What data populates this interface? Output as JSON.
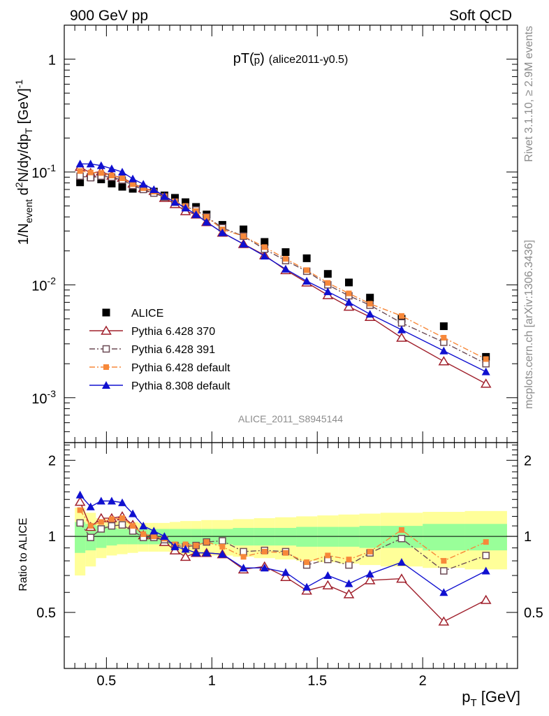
{
  "header": {
    "left": "900 GeV pp",
    "right": "Soft QCD"
  },
  "side": {
    "rivet": "Rivet 3.1.10, ≥ 2.9M events",
    "mcplots": "mcplots.cern.ch [arXiv:1306.3436]"
  },
  "analysis_id": "ALICE_2011_S8945144",
  "colors": {
    "alice": "#000000",
    "p370": "#a0202c",
    "p391": "#6b4a55",
    "pdef": "#f7883a",
    "p8": "#1010d0",
    "band_inner": "#99ff99",
    "band_outer": "#ffff99"
  },
  "chart_data": [
    {
      "type": "scatter",
      "title_main": "pT(",
      "title_pbar": "p",
      "title_close": ")",
      "title_tag": "(alice2011-y0.5)",
      "ylabel": {
        "a": "1/N",
        "a_sub": "event",
        "b": " d",
        "b_sup": "2",
        "c": "N/dy/dp",
        "c_sub": "T",
        "d": " [GeV]",
        "d_sup": "-1"
      },
      "yscale": "log",
      "xlim": [
        0.3,
        2.45
      ],
      "ylim": [
        0.0004,
        2.0
      ],
      "yticks": [
        {
          "value": 1,
          "base": "1",
          "exp": ""
        },
        {
          "value": 0.1,
          "base": "10",
          "exp": "-1"
        },
        {
          "value": 0.01,
          "base": "10",
          "exp": "-2"
        },
        {
          "value": 0.001,
          "base": "10",
          "exp": "-3"
        }
      ],
      "x": [
        0.375,
        0.425,
        0.475,
        0.525,
        0.575,
        0.625,
        0.675,
        0.725,
        0.775,
        0.825,
        0.875,
        0.925,
        0.975,
        1.05,
        1.15,
        1.25,
        1.35,
        1.45,
        1.55,
        1.65,
        1.75,
        1.9,
        2.1,
        2.3
      ],
      "legend_position": "bottom-left",
      "series": [
        {
          "name": "ALICE",
          "marker": "filled-square",
          "color_key": "alice",
          "values": [
            0.081,
            0.09,
            0.086,
            0.079,
            0.074,
            0.071,
            0.071,
            0.067,
            0.062,
            0.059,
            0.054,
            0.049,
            0.042,
            0.034,
            0.031,
            0.024,
            0.0195,
            0.0172,
            0.0125,
            0.0105,
            0.0077,
            0.005,
            0.0043,
            0.0023
          ]
        },
        {
          "name": "Pythia 6.428 370",
          "marker": "open-triangle",
          "color_key": "p370",
          "line": "solid",
          "values": [
            0.111,
            0.098,
            0.101,
            0.093,
            0.089,
            0.079,
            0.072,
            0.068,
            0.059,
            0.052,
            0.045,
            0.042,
            0.036,
            0.029,
            0.023,
            0.0183,
            0.0135,
            0.0105,
            0.0081,
            0.0064,
            0.0052,
            0.0034,
            0.0021,
            0.00133
          ]
        },
        {
          "name": "Pythia 6.428 391",
          "marker": "open-square",
          "color_key": "p391",
          "line": "dashdot",
          "values": [
            0.092,
            0.089,
            0.092,
            0.09,
            0.085,
            0.076,
            0.07,
            0.065,
            0.06,
            0.054,
            0.049,
            0.046,
            0.04,
            0.032,
            0.027,
            0.0207,
            0.0164,
            0.0132,
            0.01,
            0.008,
            0.0066,
            0.0046,
            0.0031,
            0.002
          ]
        },
        {
          "name": "Pythia 6.428 default",
          "marker": "filled-small-square",
          "color_key": "pdef",
          "line": "dashdot",
          "values": [
            0.102,
            0.099,
            0.098,
            0.093,
            0.088,
            0.078,
            0.072,
            0.067,
            0.061,
            0.055,
            0.05,
            0.045,
            0.04,
            0.031,
            0.027,
            0.0216,
            0.017,
            0.0135,
            0.0104,
            0.0084,
            0.0068,
            0.0053,
            0.0034,
            0.0022
          ]
        },
        {
          "name": "Pythia 8.308 default",
          "marker": "filled-triangle",
          "color_key": "p8",
          "line": "solid",
          "values": [
            0.118,
            0.118,
            0.114,
            0.107,
            0.1,
            0.087,
            0.078,
            0.07,
            0.061,
            0.054,
            0.048,
            0.042,
            0.036,
            0.029,
            0.023,
            0.018,
            0.0138,
            0.0108,
            0.0087,
            0.007,
            0.0055,
            0.004,
            0.0026,
            0.0017
          ]
        }
      ]
    },
    {
      "type": "scatter",
      "ylabel": "Ratio to ALICE",
      "xlabel": {
        "a": "p",
        "sub": "T",
        "b": " [GeV]"
      },
      "xlim": [
        0.3,
        2.45
      ],
      "ylim": [
        0.3,
        2.35
      ],
      "yticks": [
        0.5,
        1,
        2
      ],
      "xticks": [
        0.5,
        1,
        1.5,
        2
      ],
      "reference_line": 1,
      "x": [
        0.375,
        0.425,
        0.475,
        0.525,
        0.575,
        0.625,
        0.675,
        0.725,
        0.775,
        0.825,
        0.875,
        0.925,
        0.975,
        1.05,
        1.15,
        1.25,
        1.35,
        1.45,
        1.55,
        1.65,
        1.75,
        1.9,
        2.1,
        2.3
      ],
      "bins": [
        [
          0.35,
          0.4
        ],
        [
          0.4,
          0.45
        ],
        [
          0.45,
          0.5
        ],
        [
          0.5,
          0.55
        ],
        [
          0.55,
          0.6
        ],
        [
          0.6,
          0.65
        ],
        [
          0.65,
          0.7
        ],
        [
          0.7,
          0.75
        ],
        [
          0.75,
          0.8
        ],
        [
          0.8,
          0.85
        ],
        [
          0.85,
          0.9
        ],
        [
          0.9,
          0.95
        ],
        [
          0.95,
          1.0
        ],
        [
          1.0,
          1.1
        ],
        [
          1.1,
          1.2
        ],
        [
          1.2,
          1.3
        ],
        [
          1.3,
          1.4
        ],
        [
          1.4,
          1.5
        ],
        [
          1.5,
          1.6
        ],
        [
          1.6,
          1.7
        ],
        [
          1.7,
          1.8
        ],
        [
          1.8,
          2.0
        ],
        [
          2.0,
          2.2
        ],
        [
          2.2,
          2.4
        ]
      ],
      "band_inner": [
        0.14,
        0.12,
        0.1,
        0.08,
        0.07,
        0.07,
        0.07,
        0.07,
        0.07,
        0.07,
        0.07,
        0.07,
        0.07,
        0.07,
        0.08,
        0.08,
        0.08,
        0.09,
        0.09,
        0.09,
        0.1,
        0.1,
        0.12,
        0.12
      ],
      "band_outer": [
        0.3,
        0.24,
        0.18,
        0.16,
        0.15,
        0.14,
        0.13,
        0.13,
        0.13,
        0.14,
        0.15,
        0.15,
        0.16,
        0.16,
        0.17,
        0.18,
        0.19,
        0.2,
        0.21,
        0.22,
        0.23,
        0.24,
        0.25,
        0.26
      ],
      "series": [
        {
          "name": "Pythia 6.428 370",
          "marker": "open-triangle",
          "color_key": "p370",
          "line": "solid",
          "values": [
            1.37,
            1.09,
            1.18,
            1.18,
            1.2,
            1.11,
            1.01,
            1.01,
            0.95,
            0.88,
            0.83,
            0.86,
            0.86,
            0.85,
            0.74,
            0.76,
            0.69,
            0.61,
            0.64,
            0.59,
            0.67,
            0.68,
            0.46,
            0.56
          ]
        },
        {
          "name": "Pythia 6.428 391",
          "marker": "open-square",
          "color_key": "p391",
          "line": "dashdot",
          "values": [
            1.13,
            0.99,
            1.07,
            1.1,
            1.11,
            1.05,
            0.99,
            0.99,
            0.97,
            0.92,
            0.91,
            0.92,
            0.95,
            0.96,
            0.87,
            0.88,
            0.87,
            0.77,
            0.81,
            0.77,
            0.86,
            0.98,
            0.73,
            0.84
          ]
        },
        {
          "name": "Pythia 6.428 default",
          "marker": "filled-small-square",
          "color_key": "pdef",
          "line": "dashdot",
          "values": [
            1.27,
            1.1,
            1.14,
            1.17,
            1.18,
            1.1,
            1.02,
            1.0,
            0.98,
            0.93,
            0.93,
            0.92,
            0.95,
            0.91,
            0.83,
            0.87,
            0.86,
            0.79,
            0.84,
            0.81,
            0.87,
            1.06,
            0.8,
            0.95
          ]
        },
        {
          "name": "Pythia 8.308 default",
          "marker": "filled-triangle",
          "color_key": "p8",
          "line": "solid",
          "values": [
            1.46,
            1.31,
            1.38,
            1.38,
            1.36,
            1.23,
            1.1,
            1.05,
            1.0,
            0.91,
            0.89,
            0.86,
            0.86,
            0.85,
            0.75,
            0.75,
            0.72,
            0.63,
            0.7,
            0.65,
            0.71,
            0.79,
            0.6,
            0.73
          ]
        }
      ]
    }
  ]
}
